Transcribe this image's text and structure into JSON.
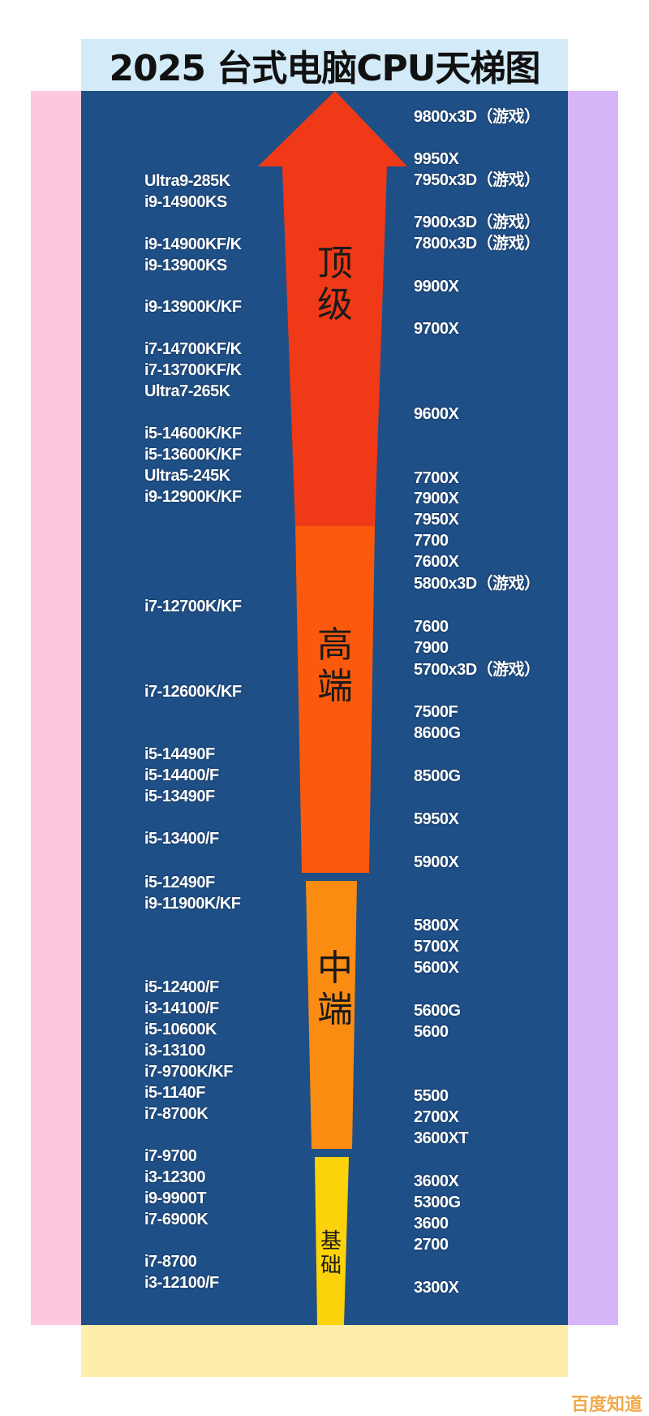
{
  "title": "2025 台式电脑CPU天梯图",
  "colors": {
    "panel": "#1f4f87",
    "tier_top": "#f03a17",
    "tier_high": "#fb5a0c",
    "tier_mid": "#fb8c12",
    "tier_base": "#fcd20a",
    "title_bg": "#d3ebf8"
  },
  "tiers": {
    "top": "顶级",
    "high": "高端",
    "mid": "中端",
    "base": "基础"
  },
  "intel": [
    "Ultra9-285K",
    "i9-14900KS",
    "i9-14900KF/K",
    "i9-13900KS",
    "i9-13900K/KF",
    "i7-14700KF/K",
    "i7-13700KF/K",
    "Ultra7-265K",
    "i5-14600K/KF",
    "i5-13600K/KF",
    "Ultra5-245K",
    "i9-12900K/KF",
    "i7-12700K/KF",
    "i7-12600K/KF",
    "i5-14490F",
    "i5-14400/F",
    "i5-13490F",
    "i5-13400/F",
    "i5-12490F",
    "i9-11900K/KF",
    "i5-12400/F",
    "i3-14100/F",
    "i5-10600K",
    "i3-13100",
    "i7-9700K/KF",
    "i5-1140F",
    "i7-8700K",
    "i7-9700",
    "i3-12300",
    "i9-9900T",
    "i7-6900K",
    "i7-8700",
    "i3-12100/F"
  ],
  "amd": [
    "9800x3D（游戏）",
    "9950X",
    "7950x3D（游戏）",
    "7900x3D（游戏）",
    "7800x3D（游戏）",
    "9900X",
    "9700X",
    "9600X",
    "7700X",
    "7900X",
    "7950X",
    "7700",
    "7600X",
    "5800x3D（游戏）",
    "7600",
    "7900",
    "5700x3D（游戏）",
    "7500F",
    "8600G",
    "8500G",
    "5950X",
    "5900X",
    "5800X",
    "5700X",
    "5600X",
    "5600G",
    "5600",
    "5500",
    "2700X",
    "3600XT",
    "3600X",
    "5300G",
    "3600",
    "2700",
    "3300X"
  ],
  "watermark": "百度知道"
}
